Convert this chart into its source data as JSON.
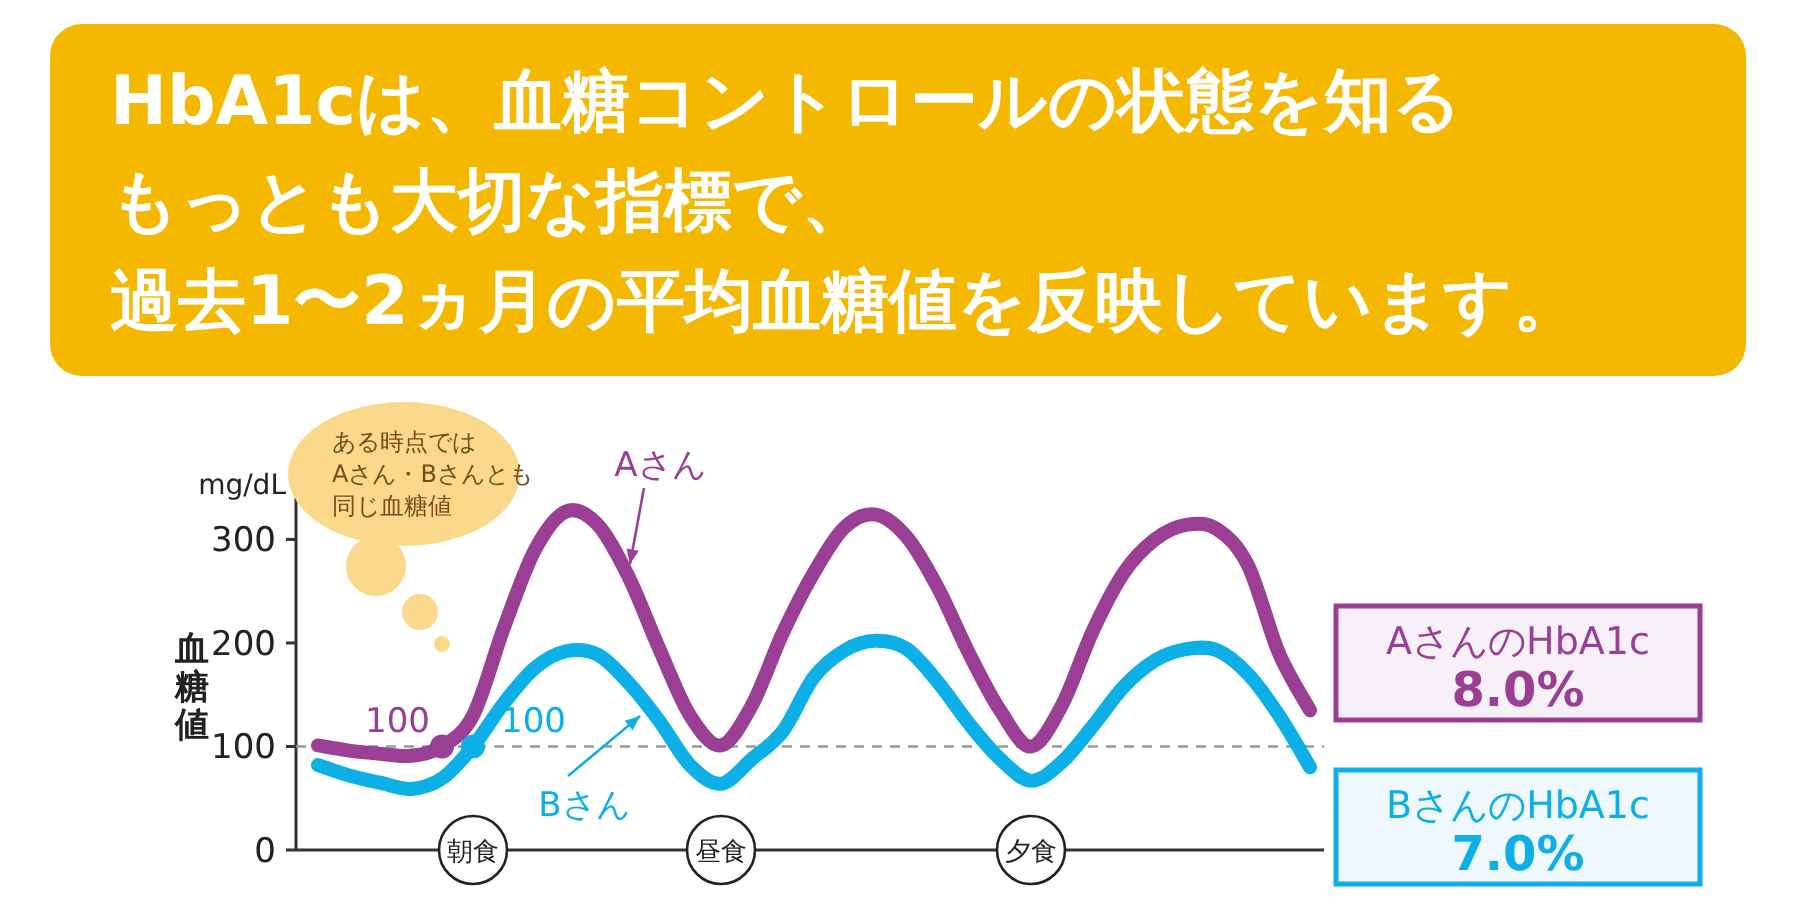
{
  "chart_data": {
    "type": "line",
    "title": "HbA1cは、血糖コントロールの状態を知るもっとも大切な指標で、",
    "subtitle": "過去1〜2ヵ月の平均血糖値を反映しています。",
    "ylabel": "血糖値",
    "categories": [
      null,
      null,
      null,
      null,
      null,
      "朝食",
      null,
      null,
      null,
      null,
      null,
      null,
      null,
      "昼食",
      null,
      null,
      null,
      null,
      null,
      null,
      null,
      null,
      null,
      "夕食",
      null,
      null,
      null,
      null,
      null,
      null,
      null,
      null,
      null
    ],
    "ylim": [
      0,
      340
    ],
    "yticks": [
      0,
      100,
      200,
      300
    ],
    "ref_lines": [
      {
        "axis": "y",
        "value": 100,
        "color": "#999999",
        "line_style": "dashed"
      }
    ],
    "line_style": "solid",
    "grid": false,
    "series": [
      {
        "name": "Aさん",
        "color": "#9b3f95",
        "values": [
          101,
          96,
          93,
          91,
          100,
          130,
          215,
          290,
          327,
          315,
          265,
          195,
          130,
          101,
          140,
          210,
          268,
          312,
          324,
          302,
          253,
          190,
          135,
          100,
          140,
          212,
          268,
          300,
          314,
          310,
          275,
          190,
          135
        ]
      },
      {
        "name": "Bさん",
        "color": "#0cb0e6",
        "values": [
          82,
          72,
          65,
          59,
          69,
          100,
          142,
          176,
          192,
          189,
          162,
          125,
          82,
          64,
          88,
          115,
          167,
          193,
          202,
          194,
          162,
          122,
          88,
          67,
          85,
          120,
          158,
          183,
          194,
          193,
          170,
          130,
          80
        ]
      },
      {
        "type": "scatter",
        "color": "#9b3f95",
        "values": [
          null,
          null,
          null,
          null,
          100,
          null,
          null,
          null,
          null,
          null,
          null,
          null,
          null,
          null,
          null,
          null,
          null,
          null,
          null,
          null,
          null,
          null,
          null,
          null,
          null,
          null,
          null,
          null,
          null,
          null,
          null,
          null,
          null
        ],
        "value_labels": [
          null,
          null,
          null,
          null,
          "100",
          null,
          null,
          null,
          null,
          null,
          null,
          null,
          null,
          null,
          null,
          null,
          null,
          null,
          null,
          null,
          null,
          null,
          null,
          null,
          null,
          null,
          null,
          null,
          null,
          null,
          null,
          null,
          null
        ]
      },
      {
        "type": "scatter",
        "color": "#0cb0e6",
        "values": [
          null,
          null,
          null,
          null,
          null,
          100,
          null,
          null,
          null,
          null,
          null,
          null,
          null,
          null,
          null,
          null,
          null,
          null,
          null,
          null,
          null,
          null,
          null,
          null,
          null,
          null,
          null,
          null,
          null,
          null,
          null,
          null,
          null
        ],
        "value_labels": [
          null,
          null,
          null,
          null,
          null,
          "100",
          null,
          null,
          null,
          null,
          null,
          null,
          null,
          null,
          null,
          null,
          null,
          null,
          null,
          null,
          null,
          null,
          null,
          null,
          null,
          null,
          null,
          null,
          null,
          null,
          null,
          null,
          null
        ]
      }
    ],
    "annotations": [
      "mg/dL",
      "ある時点ではAさん・Bさんとも同じ血糖値",
      "AさんのHbA1c",
      "8.0%",
      "BさんのHbA1c",
      "7.0%"
    ]
  }
}
